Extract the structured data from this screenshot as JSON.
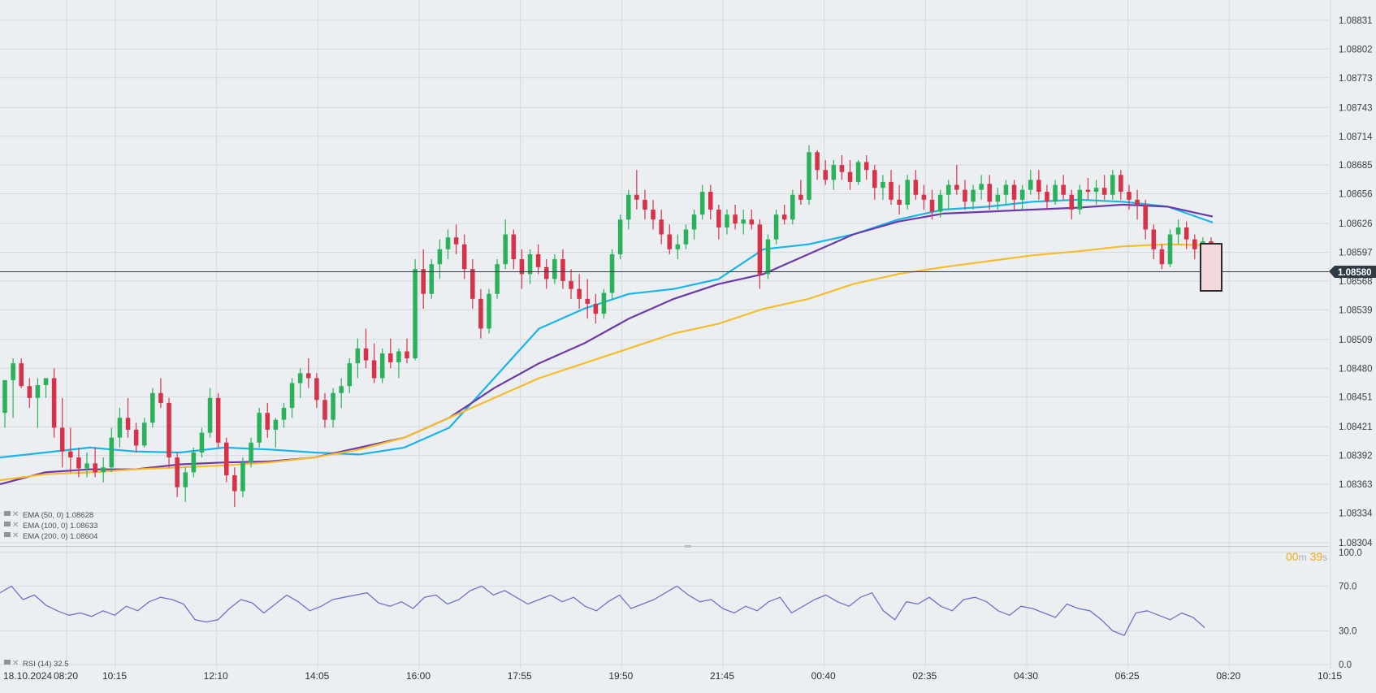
{
  "chart_data": {
    "type": "candlestick",
    "price_ticks": [
      "1.08831",
      "1.08802",
      "1.08773",
      "1.08743",
      "1.08714",
      "1.08685",
      "1.08656",
      "1.08626",
      "1.08597",
      "1.08568",
      "1.08539",
      "1.08509",
      "1.08480",
      "1.08451",
      "1.08421",
      "1.08392",
      "1.08363",
      "1.08334",
      "1.08304"
    ],
    "y_range": [
      1.08304,
      1.08845
    ],
    "current_price": "1.08580",
    "current_price_value": 1.0858,
    "time_labels": [
      "18.10.2024",
      "08:20",
      "10:15",
      "12:10",
      "14:05",
      "16:00",
      "17:55",
      "19:50",
      "21:45",
      "00:40",
      "02:35",
      "04:30",
      "06:25",
      "08:20",
      "10:15"
    ],
    "timer": {
      "minutes": "00",
      "m_unit": "m",
      "seconds": "39",
      "s_unit": "s"
    },
    "candles": [
      [
        1.08435,
        1.08468,
        1.0842,
        1.08468
      ],
      [
        1.08468,
        1.0849,
        1.0843,
        1.08485
      ],
      [
        1.08485,
        1.0849,
        1.0846,
        1.08462
      ],
      [
        1.08462,
        1.0847,
        1.0844,
        1.0845
      ],
      [
        1.0845,
        1.0847,
        1.0842,
        1.08463
      ],
      [
        1.08463,
        1.0847,
        1.0845,
        1.0847
      ],
      [
        1.0847,
        1.0848,
        1.0841,
        1.0842
      ],
      [
        1.0842,
        1.0845,
        1.0838,
        1.08396
      ],
      [
        1.08396,
        1.0842,
        1.08375,
        1.0839
      ],
      [
        1.0839,
        1.084,
        1.0837,
        1.08379
      ],
      [
        1.08379,
        1.08395,
        1.0837,
        1.08384
      ],
      [
        1.08384,
        1.084,
        1.0837,
        1.08375
      ],
      [
        1.08375,
        1.0839,
        1.08365,
        1.0838
      ],
      [
        1.0838,
        1.0842,
        1.08375,
        1.0841
      ],
      [
        1.0841,
        1.0844,
        1.084,
        1.0843
      ],
      [
        1.0843,
        1.0845,
        1.0841,
        1.08418
      ],
      [
        1.08418,
        1.08425,
        1.08395,
        1.08402
      ],
      [
        1.08402,
        1.0843,
        1.084,
        1.08425
      ],
      [
        1.08425,
        1.0846,
        1.0842,
        1.08455
      ],
      [
        1.08455,
        1.0847,
        1.0844,
        1.08445
      ],
      [
        1.08445,
        1.0845,
        1.0838,
        1.0839
      ],
      [
        1.0839,
        1.08395,
        1.0835,
        1.0836
      ],
      [
        1.0836,
        1.0838,
        1.08345,
        1.08375
      ],
      [
        1.08375,
        1.084,
        1.0837,
        1.08395
      ],
      [
        1.08395,
        1.0842,
        1.0839,
        1.08415
      ],
      [
        1.08415,
        1.0846,
        1.0841,
        1.0845
      ],
      [
        1.0845,
        1.08455,
        1.084,
        1.08405
      ],
      [
        1.08405,
        1.0841,
        1.08365,
        1.08372
      ],
      [
        1.08372,
        1.0838,
        1.0834,
        1.08356
      ],
      [
        1.08356,
        1.0839,
        1.0835,
        1.08385
      ],
      [
        1.08385,
        1.0841,
        1.0838,
        1.08405
      ],
      [
        1.08405,
        1.0844,
        1.084,
        1.08435
      ],
      [
        1.08435,
        1.08445,
        1.0841,
        1.08418
      ],
      [
        1.08418,
        1.0843,
        1.084,
        1.08428
      ],
      [
        1.08428,
        1.08445,
        1.0842,
        1.0844
      ],
      [
        1.0844,
        1.0847,
        1.0843,
        1.08465
      ],
      [
        1.08465,
        1.0848,
        1.0845,
        1.08475
      ],
      [
        1.08475,
        1.0849,
        1.0846,
        1.0847
      ],
      [
        1.0847,
        1.08475,
        1.0844,
        1.08448
      ],
      [
        1.08448,
        1.08455,
        1.0842,
        1.08428
      ],
      [
        1.08428,
        1.0846,
        1.0842,
        1.08455
      ],
      [
        1.08455,
        1.0847,
        1.0844,
        1.08462
      ],
      [
        1.08462,
        1.0849,
        1.08455,
        1.08485
      ],
      [
        1.08485,
        1.0851,
        1.0847,
        1.085
      ],
      [
        1.085,
        1.0852,
        1.0848,
        1.08488
      ],
      [
        1.08488,
        1.08505,
        1.08465,
        1.0847
      ],
      [
        1.0847,
        1.085,
        1.08465,
        1.08495
      ],
      [
        1.08495,
        1.0851,
        1.0848,
        1.08486
      ],
      [
        1.08486,
        1.085,
        1.0847,
        1.08497
      ],
      [
        1.08497,
        1.0851,
        1.08485,
        1.0849
      ],
      [
        1.0849,
        1.0859,
        1.08488,
        1.0858
      ],
      [
        1.0858,
        1.086,
        1.0854,
        1.08555
      ],
      [
        1.08555,
        1.0859,
        1.0855,
        1.08585
      ],
      [
        1.08585,
        1.0861,
        1.0857,
        1.086
      ],
      [
        1.086,
        1.0862,
        1.0859,
        1.08612
      ],
      [
        1.08612,
        1.08625,
        1.08595,
        1.08605
      ],
      [
        1.08605,
        1.08615,
        1.0857,
        1.0858
      ],
      [
        1.0858,
        1.0859,
        1.0854,
        1.0855
      ],
      [
        1.0855,
        1.0856,
        1.0851,
        1.0852
      ],
      [
        1.0852,
        1.0856,
        1.08515,
        1.08555
      ],
      [
        1.08555,
        1.0859,
        1.0855,
        1.08585
      ],
      [
        1.08585,
        1.0863,
        1.0858,
        1.08615
      ],
      [
        1.08615,
        1.0862,
        1.0858,
        1.0859
      ],
      [
        1.0859,
        1.086,
        1.0856,
        1.08575
      ],
      [
        1.08575,
        1.086,
        1.08565,
        1.08595
      ],
      [
        1.08595,
        1.08605,
        1.08575,
        1.08582
      ],
      [
        1.08582,
        1.0859,
        1.0856,
        1.0857
      ],
      [
        1.0857,
        1.08595,
        1.08565,
        1.0859
      ],
      [
        1.0859,
        1.086,
        1.0856,
        1.08568
      ],
      [
        1.08568,
        1.0858,
        1.0855,
        1.0856
      ],
      [
        1.0856,
        1.08575,
        1.0854,
        1.0855
      ],
      [
        1.0855,
        1.0857,
        1.0853,
        1.08545
      ],
      [
        1.08545,
        1.08555,
        1.08525,
        1.08535
      ],
      [
        1.08535,
        1.0856,
        1.0853,
        1.08556
      ],
      [
        1.08556,
        1.086,
        1.0855,
        1.08595
      ],
      [
        1.08595,
        1.08635,
        1.0859,
        1.0863
      ],
      [
        1.0863,
        1.0866,
        1.0862,
        1.08655
      ],
      [
        1.08655,
        1.0868,
        1.0864,
        1.0865
      ],
      [
        1.0865,
        1.0866,
        1.0863,
        1.0864
      ],
      [
        1.0864,
        1.0865,
        1.0862,
        1.0863
      ],
      [
        1.0863,
        1.0864,
        1.08605,
        1.08615
      ],
      [
        1.08615,
        1.08625,
        1.08595,
        1.086
      ],
      [
        1.086,
        1.08615,
        1.0859,
        1.08605
      ],
      [
        1.08605,
        1.08625,
        1.086,
        1.0862
      ],
      [
        1.0862,
        1.0864,
        1.0861,
        1.08635
      ],
      [
        1.08635,
        1.08665,
        1.0863,
        1.08658
      ],
      [
        1.08658,
        1.08665,
        1.0863,
        1.0864
      ],
      [
        1.0864,
        1.08645,
        1.0861,
        1.08622
      ],
      [
        1.08622,
        1.0864,
        1.08615,
        1.08635
      ],
      [
        1.08635,
        1.08645,
        1.0862,
        1.08626
      ],
      [
        1.08626,
        1.0864,
        1.08615,
        1.0863
      ],
      [
        1.0863,
        1.0864,
        1.0862,
        1.08625
      ],
      [
        1.08625,
        1.0863,
        1.0856,
        1.08575
      ],
      [
        1.08575,
        1.08615,
        1.0857,
        1.0861
      ],
      [
        1.0861,
        1.0864,
        1.08605,
        1.08635
      ],
      [
        1.08635,
        1.08645,
        1.08625,
        1.0863
      ],
      [
        1.0863,
        1.0866,
        1.08625,
        1.08655
      ],
      [
        1.08655,
        1.0867,
        1.08645,
        1.0865
      ],
      [
        1.0865,
        1.08705,
        1.08645,
        1.08698
      ],
      [
        1.08698,
        1.087,
        1.0867,
        1.0868
      ],
      [
        1.0868,
        1.0869,
        1.08665,
        1.0867
      ],
      [
        1.0867,
        1.0869,
        1.0866,
        1.08685
      ],
      [
        1.08685,
        1.08695,
        1.0867,
        1.08678
      ],
      [
        1.08678,
        1.0869,
        1.0866,
        1.08668
      ],
      [
        1.08668,
        1.0869,
        1.08665,
        1.08688
      ],
      [
        1.08688,
        1.08695,
        1.0867,
        1.0868
      ],
      [
        1.0868,
        1.08685,
        1.0865,
        1.08662
      ],
      [
        1.08662,
        1.08675,
        1.0865,
        1.08668
      ],
      [
        1.08668,
        1.0868,
        1.08645,
        1.0865
      ],
      [
        1.0865,
        1.08665,
        1.08635,
        1.08645
      ],
      [
        1.08645,
        1.08675,
        1.0864,
        1.0867
      ],
      [
        1.0867,
        1.0868,
        1.0865,
        1.08655
      ],
      [
        1.08655,
        1.08665,
        1.0864,
        1.0865
      ],
      [
        1.0865,
        1.0866,
        1.0863,
        1.08638
      ],
      [
        1.08638,
        1.0866,
        1.08632,
        1.08655
      ],
      [
        1.08655,
        1.0867,
        1.0864,
        1.08665
      ],
      [
        1.08665,
        1.08685,
        1.08655,
        1.0866
      ],
      [
        1.0866,
        1.0867,
        1.0864,
        1.08648
      ],
      [
        1.08648,
        1.08665,
        1.0864,
        1.0866
      ],
      [
        1.0866,
        1.08675,
        1.0865,
        1.08666
      ],
      [
        1.08666,
        1.08675,
        1.0864,
        1.08648
      ],
      [
        1.08648,
        1.08662,
        1.0864,
        1.08655
      ],
      [
        1.08655,
        1.0867,
        1.08645,
        1.08665
      ],
      [
        1.08665,
        1.0867,
        1.0864,
        1.0865
      ],
      [
        1.0865,
        1.08665,
        1.0864,
        1.0866
      ],
      [
        1.0866,
        1.0868,
        1.08655,
        1.0867
      ],
      [
        1.0867,
        1.0868,
        1.0865,
        1.08658
      ],
      [
        1.08658,
        1.08665,
        1.0864,
        1.08648
      ],
      [
        1.08648,
        1.0867,
        1.08645,
        1.08665
      ],
      [
        1.08665,
        1.08675,
        1.0865,
        1.08655
      ],
      [
        1.08655,
        1.0866,
        1.0863,
        1.0864
      ],
      [
        1.0864,
        1.08665,
        1.08635,
        1.0866
      ],
      [
        1.0866,
        1.08672,
        1.0865,
        1.08658
      ],
      [
        1.08658,
        1.0867,
        1.08645,
        1.08662
      ],
      [
        1.08662,
        1.08675,
        1.0865,
        1.08655
      ],
      [
        1.08655,
        1.0868,
        1.0865,
        1.08675
      ],
      [
        1.08675,
        1.0868,
        1.0865,
        1.08658
      ],
      [
        1.08658,
        1.08665,
        1.0864,
        1.0865
      ],
      [
        1.0865,
        1.0866,
        1.0863,
        1.08645
      ],
      [
        1.08645,
        1.0865,
        1.0861,
        1.0862
      ],
      [
        1.0862,
        1.08625,
        1.0859,
        1.086
      ],
      [
        1.086,
        1.08605,
        1.0858,
        1.08585
      ],
      [
        1.08585,
        1.0862,
        1.08582,
        1.08615
      ],
      [
        1.08615,
        1.0863,
        1.08605,
        1.08622
      ],
      [
        1.08622,
        1.08628,
        1.086,
        1.0861
      ],
      [
        1.0861,
        1.08615,
        1.0859,
        1.086
      ],
      [
        1.086,
        1.08612,
        1.08592,
        1.08608
      ],
      [
        1.08608,
        1.08612,
        1.0857,
        1.0858
      ]
    ],
    "ema_series": [
      {
        "name": "EMA (50, 0)",
        "value": "1.08628",
        "color": "#1ab4e8",
        "points": [
          1.0839,
          1.08395,
          1.084,
          1.08396,
          1.08395,
          1.084,
          1.08398,
          1.08395,
          1.08393,
          1.084,
          1.0842,
          1.0847,
          1.0852,
          1.0854,
          1.08555,
          1.0856,
          1.0857,
          1.086,
          1.08605,
          1.08615,
          1.0863,
          1.0864,
          1.08643,
          1.08648,
          1.0865,
          1.08648,
          1.08643,
          1.08627
        ]
      },
      {
        "name": "EMA (100, 0)",
        "value": "1.08633",
        "color": "#6a3aa8",
        "points": [
          1.08363,
          1.08375,
          1.08378,
          1.08378,
          1.08383,
          1.08385,
          1.08386,
          1.0839,
          1.084,
          1.0841,
          1.0843,
          1.0846,
          1.08485,
          1.08505,
          1.0853,
          1.0855,
          1.08565,
          1.08575,
          1.08595,
          1.08615,
          1.08628,
          1.08636,
          1.08638,
          1.0864,
          1.08642,
          1.08645,
          1.08643,
          1.08633
        ]
      },
      {
        "name": "EMA (200, 0)",
        "value": "1.08604",
        "color": "#f5bc2c",
        "points": [
          1.08367,
          1.08373,
          1.08375,
          1.08378,
          1.0838,
          1.08382,
          1.08385,
          1.0839,
          1.08398,
          1.0841,
          1.0843,
          1.0845,
          1.0847,
          1.08485,
          1.085,
          1.08515,
          1.08525,
          1.0854,
          1.0855,
          1.08565,
          1.08575,
          1.08582,
          1.08588,
          1.08594,
          1.08598,
          1.08603,
          1.08605,
          1.08604
        ]
      }
    ],
    "rsi": {
      "name": "RSI (14)",
      "value": "32.5",
      "ticks": [
        "100.0",
        "70.0",
        "30.0",
        "0.0"
      ],
      "color": "#6b72c8",
      "points": [
        64,
        70,
        58,
        62,
        53,
        48,
        44,
        46,
        43,
        48,
        44,
        52,
        48,
        56,
        60,
        58,
        54,
        40,
        38,
        40,
        50,
        58,
        55,
        46,
        54,
        62,
        56,
        48,
        52,
        58,
        60,
        62,
        64,
        55,
        52,
        56,
        50,
        60,
        62,
        54,
        58,
        66,
        70,
        62,
        66,
        60,
        54,
        58,
        62,
        56,
        60,
        52,
        48,
        56,
        62,
        50,
        54,
        58,
        64,
        70,
        62,
        56,
        58,
        50,
        46,
        52,
        48,
        56,
        60,
        46,
        52,
        58,
        62,
        56,
        52,
        60,
        64,
        48,
        40,
        56,
        54,
        60,
        52,
        48,
        58,
        60,
        56,
        48,
        44,
        52,
        50,
        46,
        42,
        54,
        50,
        48,
        40,
        30,
        26,
        46,
        48,
        44,
        40,
        46,
        42,
        33
      ]
    },
    "legend": {
      "ema50": "EMA (50, 0)  1.08628",
      "ema100": "EMA (100, 0)  1.08633",
      "ema200": "EMA (200, 0)  1.08604",
      "rsi": "RSI (14)  32.5"
    }
  },
  "colors": {
    "background": "#eceff2",
    "grid": "#d4d9de",
    "bull": "#2bb15a",
    "bear": "#d6334a",
    "price_line": "#2f3a44",
    "price_tag_bg": "#2f3a44",
    "timer": "#f0a818",
    "highlight_border": "#2a2a2a",
    "highlight_fill": "#f3d9dc"
  }
}
